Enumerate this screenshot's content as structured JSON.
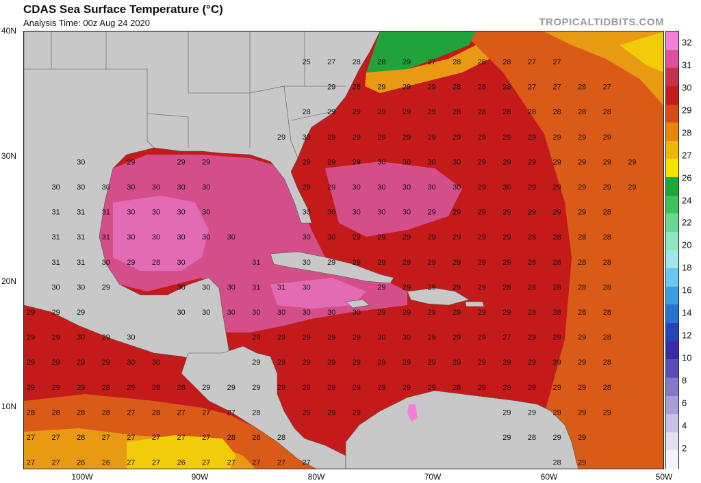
{
  "title": "CDAS Sea Surface Temperature (°C)",
  "subtitle": "Analysis Time: 00z Aug 24 2020",
  "credit": "TROPICALTIDBITS.COM",
  "lat_labels": [
    "40N",
    "30N",
    "20N",
    "10N"
  ],
  "lon_labels": [
    "100W",
    "90W",
    "80W",
    "70W",
    "60W",
    "50W"
  ],
  "colorbar": {
    "labels": [
      "32",
      "31",
      "30",
      "29",
      "28",
      "27",
      "26",
      "24",
      "22",
      "20",
      "18",
      "16",
      "14",
      "12",
      "10",
      "8",
      "6",
      "4",
      "2"
    ],
    "colors": [
      "#f280d8",
      "#e0509a",
      "#c9304f",
      "#c41a1a",
      "#d94a14",
      "#e8850f",
      "#efb60b",
      "#f5e400",
      "#1aa83a",
      "#3cc060",
      "#6ad890",
      "#8fe6c2",
      "#a0e8e8",
      "#6ac8ee",
      "#3a9ee0",
      "#2a72d0",
      "#2444b8",
      "#3a2aa8",
      "#5a4cb8",
      "#8478c8",
      "#a89ed8",
      "#cac2e6",
      "#e4e0f2",
      "#f4f2fa"
    ]
  },
  "map_colors": {
    "land": "#c8c8c8",
    "sst_32": "#f280d8",
    "sst_31": "#e36bb4",
    "sst_30": "#d44f8a",
    "sst_29": "#c41a1a",
    "sst_28": "#da5a18",
    "sst_27": "#e89a12",
    "sst_26": "#f2cc0a",
    "sst_25": "#3db84a",
    "sst_24": "#1fa33a"
  },
  "grid_values": {
    "rows": [
      [
        "",
        "",
        "",
        "",
        "",
        "",
        "",
        "",
        "",
        "",
        "",
        "25",
        "27",
        "28",
        "28",
        "29",
        "27",
        "28",
        "28",
        "28",
        "27",
        "27"
      ],
      [
        "",
        "",
        "",
        "",
        "",
        "",
        "",
        "",
        "",
        "",
        "",
        "",
        "29",
        "28",
        "29",
        "29",
        "29",
        "28",
        "28",
        "28",
        "27",
        "27",
        "28",
        "27"
      ],
      [
        "",
        "",
        "",
        "",
        "",
        "",
        "",
        "",
        "",
        "",
        "",
        "28",
        "29",
        "29",
        "29",
        "29",
        "29",
        "28",
        "28",
        "28",
        "28",
        "28",
        "28",
        "28"
      ],
      [
        "",
        "",
        "",
        "",
        "",
        "",
        "",
        "",
        "",
        "",
        "29",
        "30",
        "29",
        "29",
        "29",
        "29",
        "29",
        "29",
        "29",
        "29",
        "29",
        "29",
        "29",
        "29"
      ],
      [
        "",
        "",
        "30",
        "",
        "29",
        "",
        "29",
        "29",
        "",
        "",
        "",
        "29",
        "29",
        "29",
        "30",
        "30",
        "30",
        "30",
        "29",
        "29",
        "29",
        "29",
        "29",
        "29",
        "29"
      ],
      [
        "",
        "30",
        "30",
        "30",
        "30",
        "30",
        "30",
        "30",
        "",
        "",
        "",
        "29",
        "29",
        "30",
        "30",
        "30",
        "30",
        "30",
        "29",
        "30",
        "29",
        "29",
        "29",
        "29",
        "29"
      ],
      [
        "",
        "31",
        "31",
        "31",
        "30",
        "30",
        "30",
        "30",
        "",
        "",
        "",
        "30",
        "30",
        "30",
        "30",
        "30",
        "29",
        "29",
        "29",
        "29",
        "29",
        "29",
        "29",
        "28"
      ],
      [
        "",
        "31",
        "31",
        "31",
        "30",
        "30",
        "30",
        "30",
        "30",
        "",
        "",
        "30",
        "30",
        "29",
        "29",
        "29",
        "29",
        "29",
        "29",
        "29",
        "28",
        "28",
        "28",
        "28"
      ],
      [
        "",
        "31",
        "31",
        "30",
        "29",
        "28",
        "30",
        "",
        "",
        "31",
        "",
        "30",
        "29",
        "29",
        "29",
        "29",
        "29",
        "29",
        "29",
        "29",
        "28",
        "28",
        "28",
        "28"
      ],
      [
        "",
        "30",
        "30",
        "29",
        "",
        "",
        "30",
        "30",
        "30",
        "31",
        "31",
        "30",
        "",
        "",
        "29",
        "29",
        "29",
        "29",
        "29",
        "28",
        "28",
        "28",
        "28",
        "28"
      ],
      [
        "29",
        "29",
        "29",
        "",
        "",
        "",
        "30",
        "30",
        "30",
        "30",
        "30",
        "30",
        "30",
        "30",
        "29",
        "29",
        "29",
        "29",
        "29",
        "29",
        "28",
        "28",
        "28",
        "28"
      ],
      [
        "29",
        "29",
        "30",
        "29",
        "30",
        "",
        "",
        "",
        "",
        "29",
        "29",
        "29",
        "29",
        "29",
        "30",
        "30",
        "29",
        "29",
        "29",
        "27",
        "29",
        "29",
        "29",
        "28"
      ],
      [
        "29",
        "29",
        "29",
        "29",
        "30",
        "30",
        "",
        "",
        "",
        "29",
        "29",
        "29",
        "29",
        "29",
        "29",
        "29",
        "29",
        "29",
        "29",
        "29",
        "29",
        "29",
        "29",
        "28"
      ],
      [
        "29",
        "29",
        "29",
        "28",
        "29",
        "28",
        "28",
        "29",
        "29",
        "29",
        "29",
        "29",
        "29",
        "29",
        "29",
        "29",
        "29",
        "28",
        "29",
        "29",
        "29",
        "29",
        "29",
        "28"
      ],
      [
        "28",
        "28",
        "28",
        "28",
        "27",
        "28",
        "27",
        "27",
        "27",
        "28",
        "",
        "29",
        "29",
        "29",
        "",
        "",
        "",
        "",
        "",
        "29",
        "29",
        "29",
        "29",
        "29"
      ],
      [
        "27",
        "27",
        "28",
        "27",
        "27",
        "27",
        "27",
        "27",
        "28",
        "28",
        "28",
        "",
        "",
        "",
        "",
        "",
        "",
        "",
        "",
        "29",
        "28",
        "29",
        "29"
      ],
      [
        "27",
        "27",
        "26",
        "26",
        "27",
        "27",
        "26",
        "27",
        "27",
        "27",
        "27",
        "27",
        "",
        "",
        "",
        "",
        "",
        "",
        "",
        "",
        "",
        "28",
        "29"
      ]
    ]
  }
}
